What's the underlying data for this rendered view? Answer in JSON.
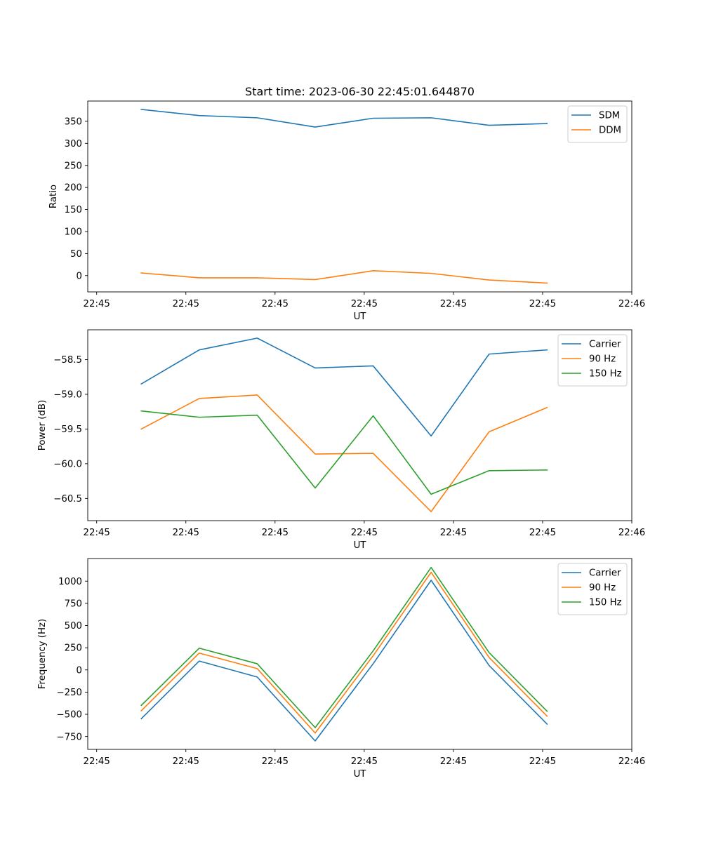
{
  "colors": {
    "blue": "#1f77b4",
    "orange": "#ff7f0e",
    "green": "#2ca02c"
  },
  "chart_data": [
    {
      "type": "line",
      "title": "Start time: 2023-06-30 22:45:01.644870",
      "xlabel": "UT",
      "ylabel": "Ratio",
      "x_tick_labels": [
        "22:45",
        "22:45",
        "22:45",
        "22:45",
        "22:45",
        "22:45",
        "22:46"
      ],
      "x_ticks": [
        0,
        1,
        2,
        3,
        4,
        5,
        6
      ],
      "xlim": [
        -0.1,
        6.0
      ],
      "x": [
        0.5,
        1.15,
        1.8,
        2.45,
        3.1,
        3.75,
        4.4,
        5.05
      ],
      "ylim": [
        -37,
        396
      ],
      "y_ticks": [
        0,
        50,
        100,
        150,
        200,
        250,
        300,
        350
      ],
      "y_tick_labels": [
        "0",
        "50",
        "100",
        "150",
        "200",
        "250",
        "300",
        "350"
      ],
      "legend": "top-right",
      "series": [
        {
          "name": "SDM",
          "color": "#1f77b4",
          "values": [
            377,
            363,
            358,
            337,
            357,
            358,
            341,
            345
          ]
        },
        {
          "name": "DDM",
          "color": "#ff7f0e",
          "values": [
            6,
            -5,
            -5,
            -9,
            11,
            5,
            -10,
            -17
          ]
        }
      ]
    },
    {
      "type": "line",
      "title": "",
      "xlabel": "UT",
      "ylabel": "Power (dB)",
      "x_tick_labels": [
        "22:45",
        "22:45",
        "22:45",
        "22:45",
        "22:45",
        "22:45",
        "22:46"
      ],
      "x_ticks": [
        0,
        1,
        2,
        3,
        4,
        5,
        6
      ],
      "xlim": [
        -0.1,
        6.0
      ],
      "x": [
        0.5,
        1.15,
        1.8,
        2.45,
        3.1,
        3.75,
        4.4,
        5.05
      ],
      "ylim": [
        -60.82,
        -58.07
      ],
      "y_ticks": [
        -60.5,
        -60.0,
        -59.5,
        -59.0,
        -58.5
      ],
      "y_tick_labels": [
        "−60.5",
        "−60.0",
        "−59.5",
        "−59.0",
        "−58.5"
      ],
      "legend": "top-right",
      "series": [
        {
          "name": "Carrier",
          "color": "#1f77b4",
          "values": [
            -58.85,
            -58.36,
            -58.19,
            -58.62,
            -58.59,
            -59.6,
            -58.42,
            -58.36
          ]
        },
        {
          "name": "90 Hz",
          "color": "#ff7f0e",
          "values": [
            -59.5,
            -59.06,
            -59.01,
            -59.86,
            -59.85,
            -60.69,
            -59.54,
            -59.19
          ]
        },
        {
          "name": "150 Hz",
          "color": "#2ca02c",
          "values": [
            -59.24,
            -59.33,
            -59.3,
            -60.35,
            -59.31,
            -60.44,
            -60.1,
            -60.09
          ]
        }
      ]
    },
    {
      "type": "line",
      "title": "",
      "xlabel": "UT",
      "ylabel": "Frequency (Hz)",
      "x_tick_labels": [
        "22:45",
        "22:45",
        "22:45",
        "22:45",
        "22:45",
        "22:45",
        "22:46"
      ],
      "x_ticks": [
        0,
        1,
        2,
        3,
        4,
        5,
        6
      ],
      "xlim": [
        -0.1,
        6.0
      ],
      "x": [
        0.5,
        1.15,
        1.8,
        2.45,
        3.1,
        3.75,
        4.4,
        5.05
      ],
      "ylim": [
        -895,
        1255
      ],
      "y_ticks": [
        -750,
        -500,
        -250,
        0,
        250,
        500,
        750,
        1000
      ],
      "y_tick_labels": [
        "−750",
        "−500",
        "−250",
        "0",
        "250",
        "500",
        "750",
        "1000"
      ],
      "legend": "top-right",
      "series": [
        {
          "name": "Carrier",
          "color": "#1f77b4",
          "values": [
            -550,
            100,
            -80,
            -800,
            70,
            1010,
            50,
            -610
          ]
        },
        {
          "name": "90 Hz",
          "color": "#ff7f0e",
          "values": [
            -460,
            190,
            15,
            -710,
            160,
            1100,
            140,
            -520
          ]
        },
        {
          "name": "150 Hz",
          "color": "#2ca02c",
          "values": [
            -400,
            245,
            70,
            -650,
            215,
            1155,
            195,
            -465
          ]
        }
      ]
    }
  ]
}
